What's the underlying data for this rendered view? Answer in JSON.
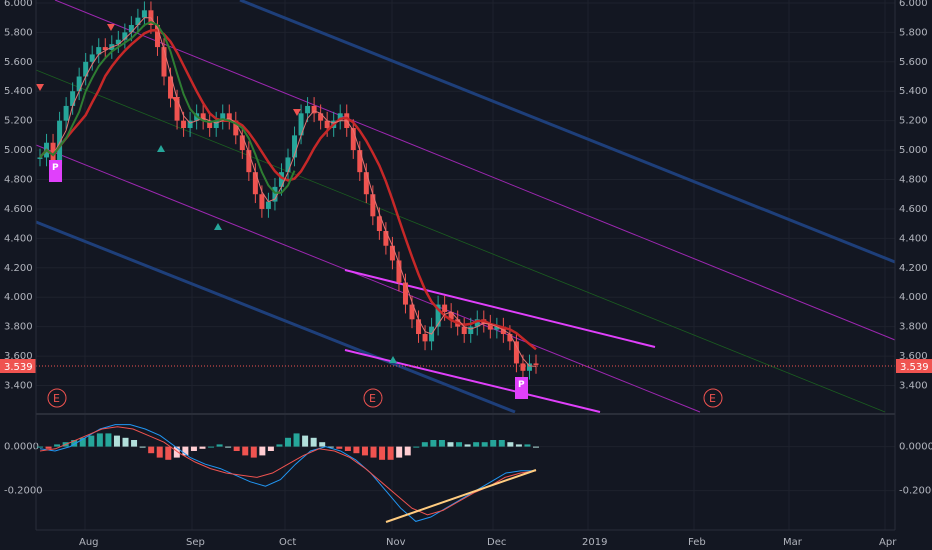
{
  "chart_data": [
    {
      "type": "candlestick",
      "title": "",
      "ylim": [
        3.22,
        6.02
      ],
      "y_ticks": [
        "6.000",
        "5.800",
        "5.600",
        "5.400",
        "5.200",
        "5.000",
        "4.800",
        "4.600",
        "4.400",
        "4.200",
        "4.000",
        "3.800",
        "3.600",
        "3.400"
      ],
      "x_ticks": [
        "Aug",
        "Sep",
        "Oct",
        "Nov",
        "Dec",
        "2019",
        "Feb",
        "Mar",
        "Apr"
      ],
      "last_price": "3.539",
      "event_markers": [
        "E",
        "E",
        "E"
      ],
      "pattern_markers": [
        "P",
        "P"
      ],
      "close_series": [
        4.95,
        5.05,
        4.9,
        5.2,
        5.3,
        5.4,
        5.5,
        5.6,
        5.65,
        5.7,
        5.68,
        5.72,
        5.75,
        5.8,
        5.85,
        5.9,
        5.95,
        5.85,
        5.7,
        5.5,
        5.35,
        5.2,
        5.15,
        5.2,
        5.25,
        5.2,
        5.15,
        5.2,
        5.25,
        5.2,
        5.1,
        5.0,
        4.85,
        4.7,
        4.6,
        4.65,
        4.75,
        4.85,
        4.95,
        5.1,
        5.25,
        5.3,
        5.25,
        5.2,
        5.15,
        5.2,
        5.25,
        5.15,
        5.0,
        4.85,
        4.7,
        4.55,
        4.45,
        4.35,
        4.25,
        4.1,
        3.95,
        3.85,
        3.75,
        3.7,
        3.8,
        3.95,
        3.9,
        3.85,
        3.8,
        3.75,
        3.8,
        3.85,
        3.82,
        3.78,
        3.8,
        3.75,
        3.7,
        3.55,
        3.5,
        3.55,
        3.54
      ],
      "colors": {
        "up": "#26a69a",
        "down": "#ef5350",
        "channel": "#1e3f7a",
        "pitch": "#9c27b0",
        "wedge": "#e040fb",
        "ma": "#c62828",
        "ema": "#2e7d32"
      }
    },
    {
      "type": "macd",
      "ylim": [
        -0.37,
        0.13
      ],
      "y_ticks": [
        "0.0000",
        "-0.2000"
      ],
      "histogram": [
        0.0,
        -0.01,
        0.01,
        0.02,
        0.03,
        0.04,
        0.05,
        0.06,
        0.06,
        0.05,
        0.04,
        0.03,
        0.0,
        -0.03,
        -0.05,
        -0.06,
        -0.05,
        -0.04,
        -0.02,
        -0.01,
        0.0,
        0.01,
        0.0,
        -0.02,
        -0.04,
        -0.05,
        -0.04,
        -0.02,
        0.01,
        0.04,
        0.06,
        0.05,
        0.04,
        0.02,
        0.0,
        -0.01,
        -0.02,
        -0.03,
        -0.04,
        -0.05,
        -0.06,
        -0.06,
        -0.05,
        -0.04,
        0.0,
        0.02,
        0.03,
        0.03,
        0.02,
        0.02,
        0.01,
        0.02,
        0.02,
        0.03,
        0.03,
        0.02,
        0.01,
        0.01,
        0.0
      ],
      "macd_line": [
        -0.01,
        -0.02,
        0.0,
        0.04,
        0.08,
        0.1,
        0.1,
        0.08,
        0.05,
        0.0,
        -0.05,
        -0.08,
        -0.1,
        -0.13,
        -0.16,
        -0.18,
        -0.15,
        -0.08,
        -0.02,
        0.0,
        -0.02,
        -0.06,
        -0.12,
        -0.2,
        -0.28,
        -0.34,
        -0.32,
        -0.28,
        -0.24,
        -0.2,
        -0.16,
        -0.12,
        -0.11,
        -0.11
      ],
      "signal_line": [
        -0.02,
        -0.01,
        0.02,
        0.05,
        0.08,
        0.09,
        0.08,
        0.05,
        0.02,
        -0.03,
        -0.07,
        -0.1,
        -0.12,
        -0.13,
        -0.14,
        -0.12,
        -0.08,
        -0.04,
        -0.01,
        -0.02,
        -0.05,
        -0.1,
        -0.16,
        -0.22,
        -0.28,
        -0.31,
        -0.29,
        -0.25,
        -0.21,
        -0.18,
        -0.14,
        -0.12,
        -0.11
      ]
    }
  ]
}
